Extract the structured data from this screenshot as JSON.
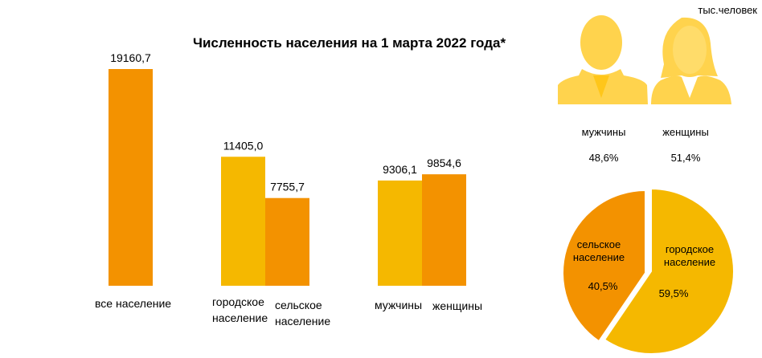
{
  "chart_data": [
    {
      "type": "bar",
      "title": "Численность населения на 1 марта 2022 года*",
      "units": "тыс.человек",
      "categories": [
        "все население",
        "городское население",
        "сельское население",
        "мужчины",
        "женщины"
      ],
      "values": [
        19160.7,
        11405.0,
        7755.7,
        9306.1,
        9854.6
      ],
      "value_labels": [
        "19160,7",
        "11405,0",
        "7755,7",
        "9306,1",
        "9854,6"
      ],
      "colors": [
        "#f39200",
        "#f5b800",
        "#f39200",
        "#f5b800",
        "#f39200"
      ],
      "ylim": [
        0,
        19160.7
      ]
    },
    {
      "type": "pie",
      "slices": [
        {
          "name": "сельское население",
          "value": 40.5,
          "label": "40,5%",
          "color": "#f39200",
          "exploded": true
        },
        {
          "name": "городское население",
          "value": 59.5,
          "label": "59,5%",
          "color": "#f5b800",
          "exploded": false
        }
      ]
    }
  ],
  "gender": [
    {
      "name": "мужчины",
      "share": "48,6%",
      "icon": "male-silhouette-icon"
    },
    {
      "name": "женщины",
      "share": "51,4%",
      "icon": "female-silhouette-icon"
    }
  ],
  "labels": {
    "all": "все население",
    "urban": "городское\nнаселение",
    "rural": "сельское\nнаселение",
    "men": "мужчины",
    "women": "женщины",
    "pie_rural": "сельское\nнаселение",
    "pie_urban": "городское\nнаселение"
  },
  "colors": {
    "orange": "#f39200",
    "yellow": "#f5b800",
    "icon": "#ffd34d"
  }
}
